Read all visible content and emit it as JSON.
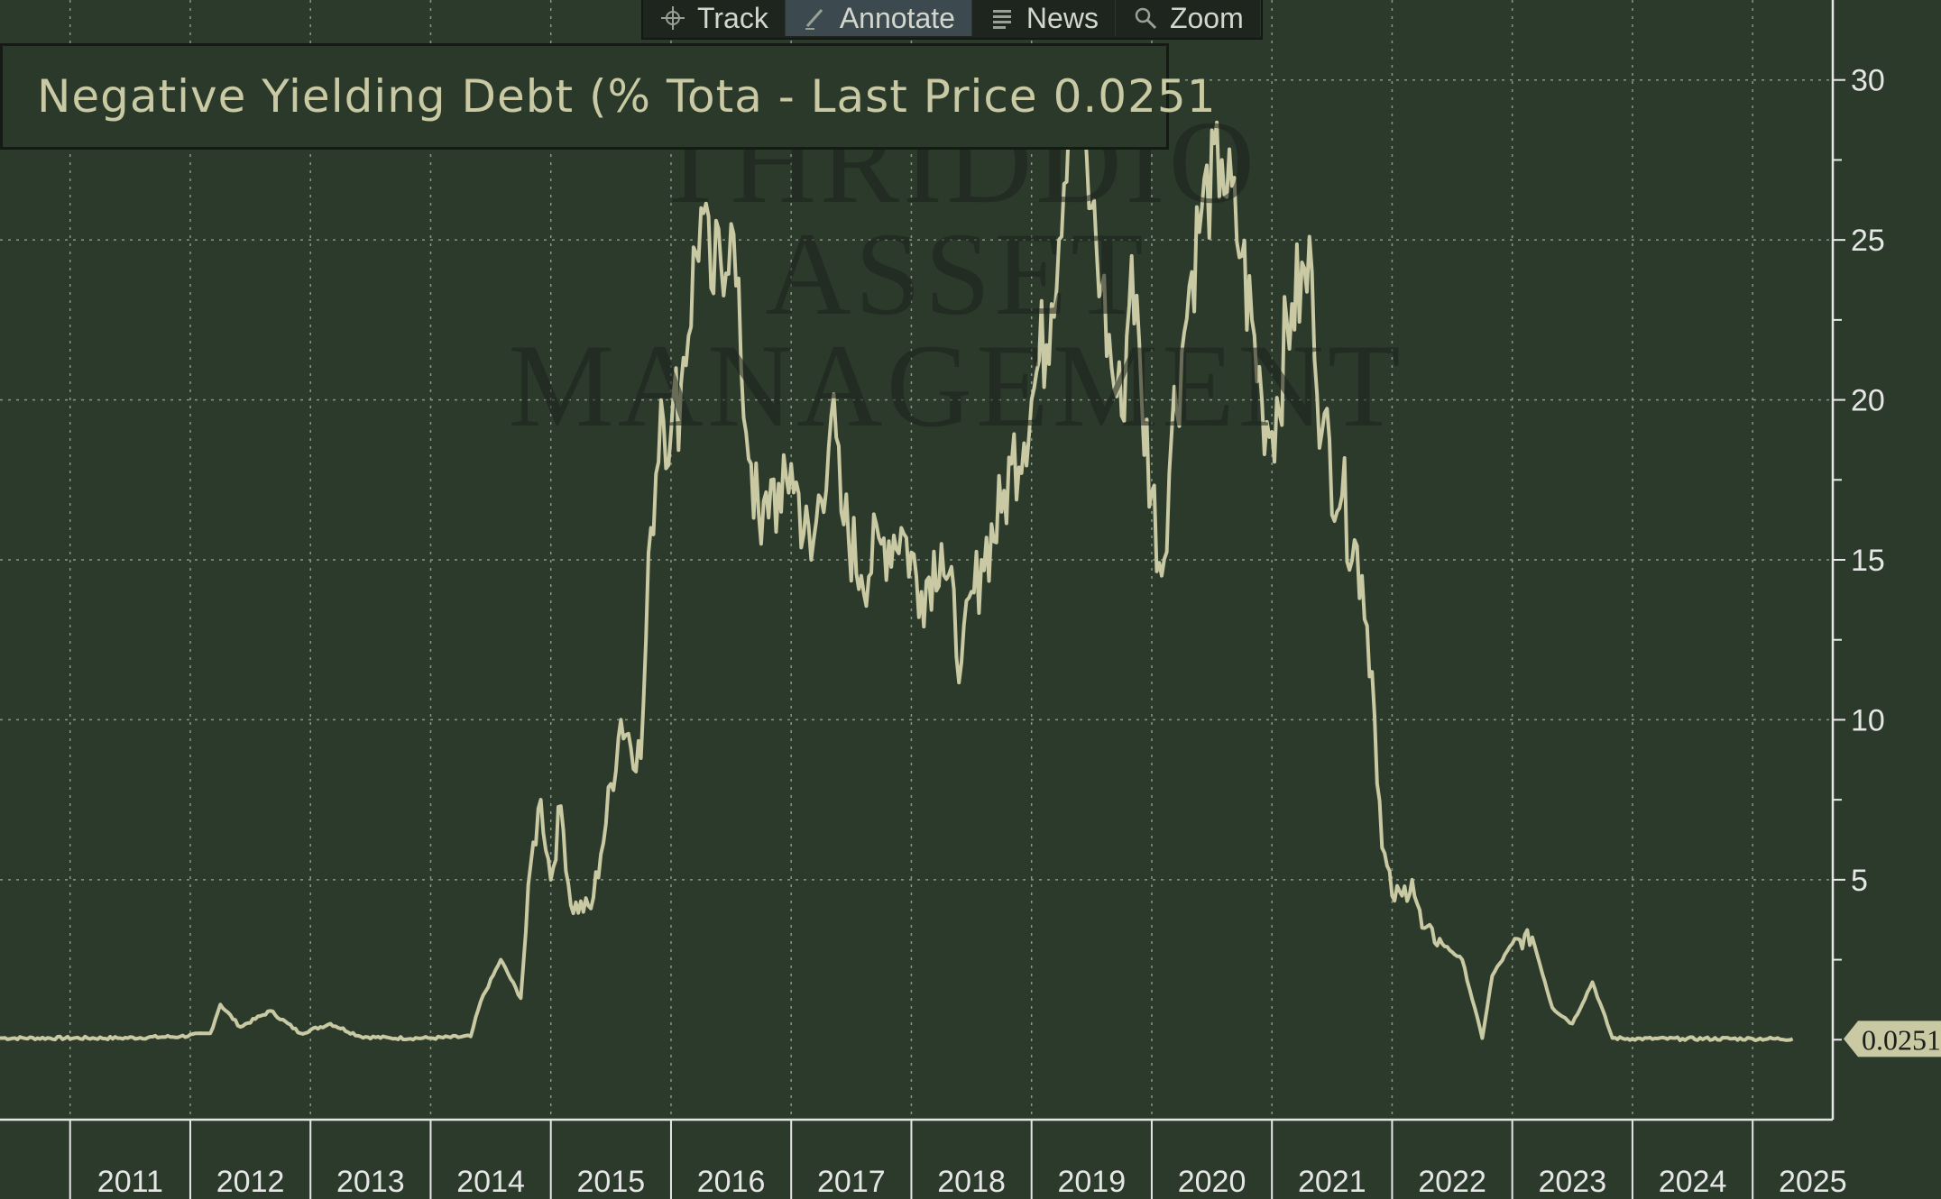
{
  "toolbar": {
    "items": [
      {
        "label": "Track",
        "icon": "crosshair-icon"
      },
      {
        "label": "Annotate",
        "icon": "pencil-icon"
      },
      {
        "label": "News",
        "icon": "news-icon"
      },
      {
        "label": "Zoom",
        "icon": "magnifier-icon"
      }
    ],
    "active": "Annotate"
  },
  "legend": {
    "label": "Negative Yielding Debt (% Tota - Last Price 0.0251"
  },
  "watermark": {
    "lines": [
      "THRIDDIO",
      "ASSET",
      "MANAGEMENT"
    ]
  },
  "colors": {
    "background": "#2c3a2c",
    "line": "#c9c9a3",
    "grid": "#8a9489",
    "last_price_tag": "#c9c9a3"
  },
  "chart_data": {
    "type": "line",
    "series": [
      {
        "name": "Negative Yielding Debt (% Tota",
        "last_price": "0.0251",
        "x": [
          "2010-06",
          "2011-06",
          "2011-12",
          "2012-03",
          "2012-04",
          "2012-06",
          "2012-09",
          "2012-12",
          "2013-03",
          "2013-06",
          "2013-09",
          "2014-01",
          "2014-05",
          "2014-06",
          "2014-08",
          "2014-10",
          "2014-11",
          "2014-12",
          "2015-01",
          "2015-02",
          "2015-03",
          "2015-05",
          "2015-06",
          "2015-08",
          "2015-10",
          "2015-11",
          "2015-12",
          "2016-01",
          "2016-02",
          "2016-04",
          "2016-05",
          "2016-07",
          "2016-08",
          "2016-09",
          "2016-10",
          "2016-11",
          "2016-12",
          "2017-01",
          "2017-03",
          "2017-05",
          "2017-06",
          "2017-08",
          "2017-10",
          "2017-12",
          "2018-02",
          "2018-04",
          "2018-06",
          "2018-08",
          "2018-10",
          "2018-11",
          "2019-01",
          "2019-03",
          "2019-05",
          "2019-07",
          "2019-08",
          "2019-09",
          "2019-10",
          "2019-11",
          "2019-12",
          "2020-02",
          "2020-03",
          "2020-04",
          "2020-05",
          "2020-06",
          "2020-08",
          "2020-10",
          "2020-12",
          "2021-01",
          "2021-03",
          "2021-05",
          "2021-06",
          "2021-08",
          "2021-10",
          "2021-11",
          "2021-12",
          "2022-01",
          "2022-02",
          "2022-03",
          "2022-04",
          "2022-06",
          "2022-08",
          "2022-10",
          "2022-11",
          "2023-01",
          "2023-03",
          "2023-05",
          "2023-07",
          "2023-09",
          "2023-11",
          "2024-01",
          "2024-06",
          "2025-01",
          "2025-05"
        ],
        "values": [
          0.05,
          0.05,
          0.1,
          0.2,
          1.1,
          0.4,
          0.9,
          0.2,
          0.5,
          0.1,
          0.05,
          0.05,
          0.1,
          1.2,
          2.5,
          1.3,
          5.5,
          7.5,
          5.0,
          7.3,
          4.2,
          4.1,
          5.8,
          10.0,
          8.8,
          16.0,
          20.0,
          19.0,
          20.5,
          26.0,
          23.5,
          25.5,
          21.0,
          18.0,
          15.5,
          17.5,
          16.5,
          18.0,
          15.0,
          19.5,
          16.5,
          14.5,
          15.5,
          16.0,
          14.0,
          15.5,
          11.8,
          15.0,
          16.5,
          18.0,
          20.0,
          23.0,
          30.0,
          26.0,
          23.5,
          21.0,
          19.5,
          24.5,
          20.0,
          14.5,
          19.0,
          21.5,
          24.0,
          26.0,
          27.5,
          24.5,
          20.0,
          19.0,
          23.0,
          24.0,
          19.0,
          17.0,
          14.5,
          11.5,
          6.0,
          4.5,
          4.5,
          5.0,
          3.5,
          3.0,
          2.5,
          0.05,
          2.0,
          3.0,
          3.2,
          1.0,
          0.5,
          1.8,
          0.05,
          0.03,
          0.03,
          0.03,
          0.0251
        ]
      }
    ],
    "xlabel": "",
    "ylabel": "",
    "x_tick_labels": [
      "2011",
      "2012",
      "2013",
      "2014",
      "2015",
      "2016",
      "2017",
      "2018",
      "2019",
      "2020",
      "2021",
      "2022",
      "2023",
      "2024",
      "2025"
    ],
    "y_ticks": [
      5,
      10,
      15,
      20,
      25,
      30
    ],
    "ylim": [
      -2.5,
      32.5
    ],
    "xlim": [
      "2010-06",
      "2025-09"
    ],
    "grid": true,
    "y_axis_side": "right",
    "legend_placement": "top-left"
  }
}
